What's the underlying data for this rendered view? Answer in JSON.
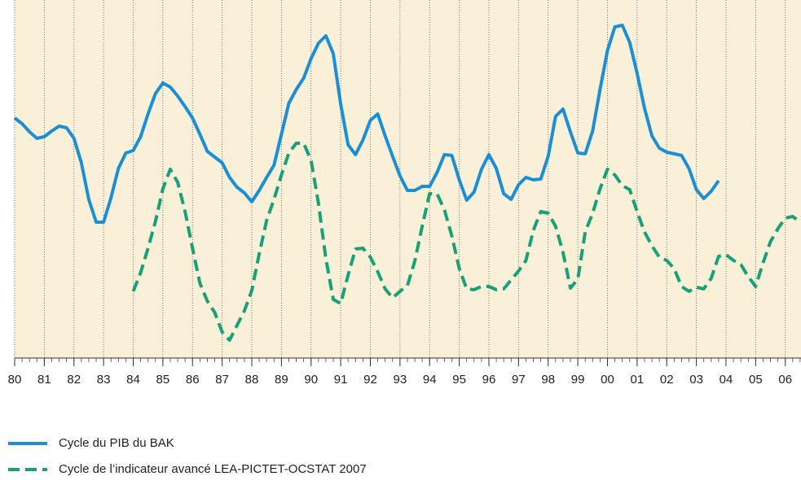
{
  "chart_data": {
    "type": "line",
    "x": [
      1980,
      1980.25,
      1980.5,
      1980.75,
      1981,
      1981.25,
      1981.5,
      1981.75,
      1982,
      1982.25,
      1982.5,
      1982.75,
      1983,
      1983.25,
      1983.5,
      1983.75,
      1984,
      1984.25,
      1984.5,
      1984.75,
      1985,
      1985.25,
      1985.5,
      1985.75,
      1986,
      1986.25,
      1986.5,
      1986.75,
      1987,
      1987.25,
      1987.5,
      1987.75,
      1988,
      1988.25,
      1988.5,
      1988.75,
      1989,
      1989.25,
      1989.5,
      1989.75,
      1990,
      1990.25,
      1990.5,
      1990.75,
      1991,
      1991.25,
      1991.5,
      1991.75,
      1992,
      1992.25,
      1992.5,
      1992.75,
      1993,
      1993.25,
      1993.5,
      1993.75,
      1994,
      1994.25,
      1994.5,
      1994.75,
      1995,
      1995.25,
      1995.5,
      1995.75,
      1996,
      1996.25,
      1996.5,
      1996.75,
      1997,
      1997.25,
      1997.5,
      1997.75,
      1998,
      1998.25,
      1998.5,
      1998.75,
      1999,
      1999.25,
      1999.5,
      1999.75,
      2000,
      2000.25,
      2000.5,
      2000.75,
      2001,
      2001.25,
      2001.5,
      2001.75,
      2002,
      2002.25,
      2002.5,
      2002.75,
      2003,
      2003.25,
      2003.5,
      2003.75,
      2004,
      2004.25,
      2004.5,
      2004.75,
      2005,
      2005.25,
      2005.5,
      2005.75,
      2006,
      2006.25,
      2006.5
    ],
    "series": [
      {
        "name": "Cycle du PIB du BAK",
        "color": "#1a8fd6",
        "dash": false,
        "values": [
          295,
          288,
          278,
          270,
          272,
          279,
          285,
          283,
          270,
          240,
          195,
          167,
          167,
          197,
          233,
          252,
          255,
          272,
          300,
          325,
          338,
          333,
          322,
          309,
          295,
          275,
          254,
          247,
          240,
          222,
          210,
          203,
          192,
          206,
          222,
          237,
          275,
          313,
          330,
          344,
          368,
          387,
          396,
          374,
          312,
          262,
          250,
          268,
          292,
          300,
          273,
          248,
          224,
          206,
          206,
          211,
          211,
          228,
          250,
          249,
          219,
          194,
          204,
          232,
          250,
          233,
          202,
          195,
          213,
          222,
          219,
          220,
          248,
          297,
          306,
          278,
          252,
          251,
          279,
          330,
          378,
          407,
          409,
          388,
          350,
          307,
          273,
          258,
          253,
          251,
          249,
          233,
          207,
          196,
          205,
          218,
          null,
          null,
          null,
          null,
          null,
          null,
          null,
          null,
          null,
          null,
          null
        ]
      },
      {
        "name": "Cycle de l’indicateur avancé LEA-PICTET-OCSTAT 2007",
        "color": "#17a07a",
        "dash": true,
        "values": [
          null,
          null,
          null,
          null,
          null,
          null,
          null,
          null,
          null,
          null,
          null,
          null,
          null,
          null,
          null,
          null,
          82,
          105,
          135,
          168,
          208,
          232,
          216,
          180,
          135,
          92,
          70,
          56,
          32,
          22,
          40,
          58,
          83,
          128,
          169,
          195,
          225,
          252,
          264,
          264,
          243,
          190,
          122,
          72,
          67,
          102,
          134,
          135,
          124,
          106,
          85,
          74,
          82,
          89,
          119,
          162,
          202,
          202,
          182,
          150,
          110,
          85,
          84,
          88,
          88,
          84,
          85,
          96,
          107,
          120,
          157,
          180,
          178,
          162,
          130,
          86,
          97,
          155,
          178,
          208,
          232,
          225,
          212,
          207,
          180,
          155,
          138,
          124,
          120,
          110,
          88,
          82,
          87,
          85,
          98,
          125,
          127,
          120,
          115,
          100,
          88,
          117,
          143,
          159,
          172,
          174,
          167
        ]
      }
    ],
    "xlim": [
      1980,
      2006.53
    ],
    "ylim": [
      0,
      440
    ],
    "xticks": [
      {
        "value": 1980,
        "label": "80"
      },
      {
        "value": 1981,
        "label": "81"
      },
      {
        "value": 1982,
        "label": "82"
      },
      {
        "value": 1983,
        "label": "83"
      },
      {
        "value": 1984,
        "label": "84"
      },
      {
        "value": 1985,
        "label": "85"
      },
      {
        "value": 1986,
        "label": "86"
      },
      {
        "value": 1987,
        "label": "87"
      },
      {
        "value": 1988,
        "label": "88"
      },
      {
        "value": 1989,
        "label": "89"
      },
      {
        "value": 1990,
        "label": "90"
      },
      {
        "value": 1991,
        "label": "91"
      },
      {
        "value": 1992,
        "label": "92"
      },
      {
        "value": 1993,
        "label": "93"
      },
      {
        "value": 1994,
        "label": "94"
      },
      {
        "value": 1995,
        "label": "95"
      },
      {
        "value": 1996,
        "label": "96"
      },
      {
        "value": 1997,
        "label": "97"
      },
      {
        "value": 1998,
        "label": "98"
      },
      {
        "value": 1999,
        "label": "99"
      },
      {
        "value": 2000,
        "label": "00"
      },
      {
        "value": 2001,
        "label": "01"
      },
      {
        "value": 2002,
        "label": "02"
      },
      {
        "value": 2003,
        "label": "03"
      },
      {
        "value": 2004,
        "label": "04"
      },
      {
        "value": 2005,
        "label": "05"
      },
      {
        "value": 2006,
        "label": "06"
      }
    ],
    "grid": true,
    "background": "#faf0d8",
    "legend": "bottom-left"
  }
}
